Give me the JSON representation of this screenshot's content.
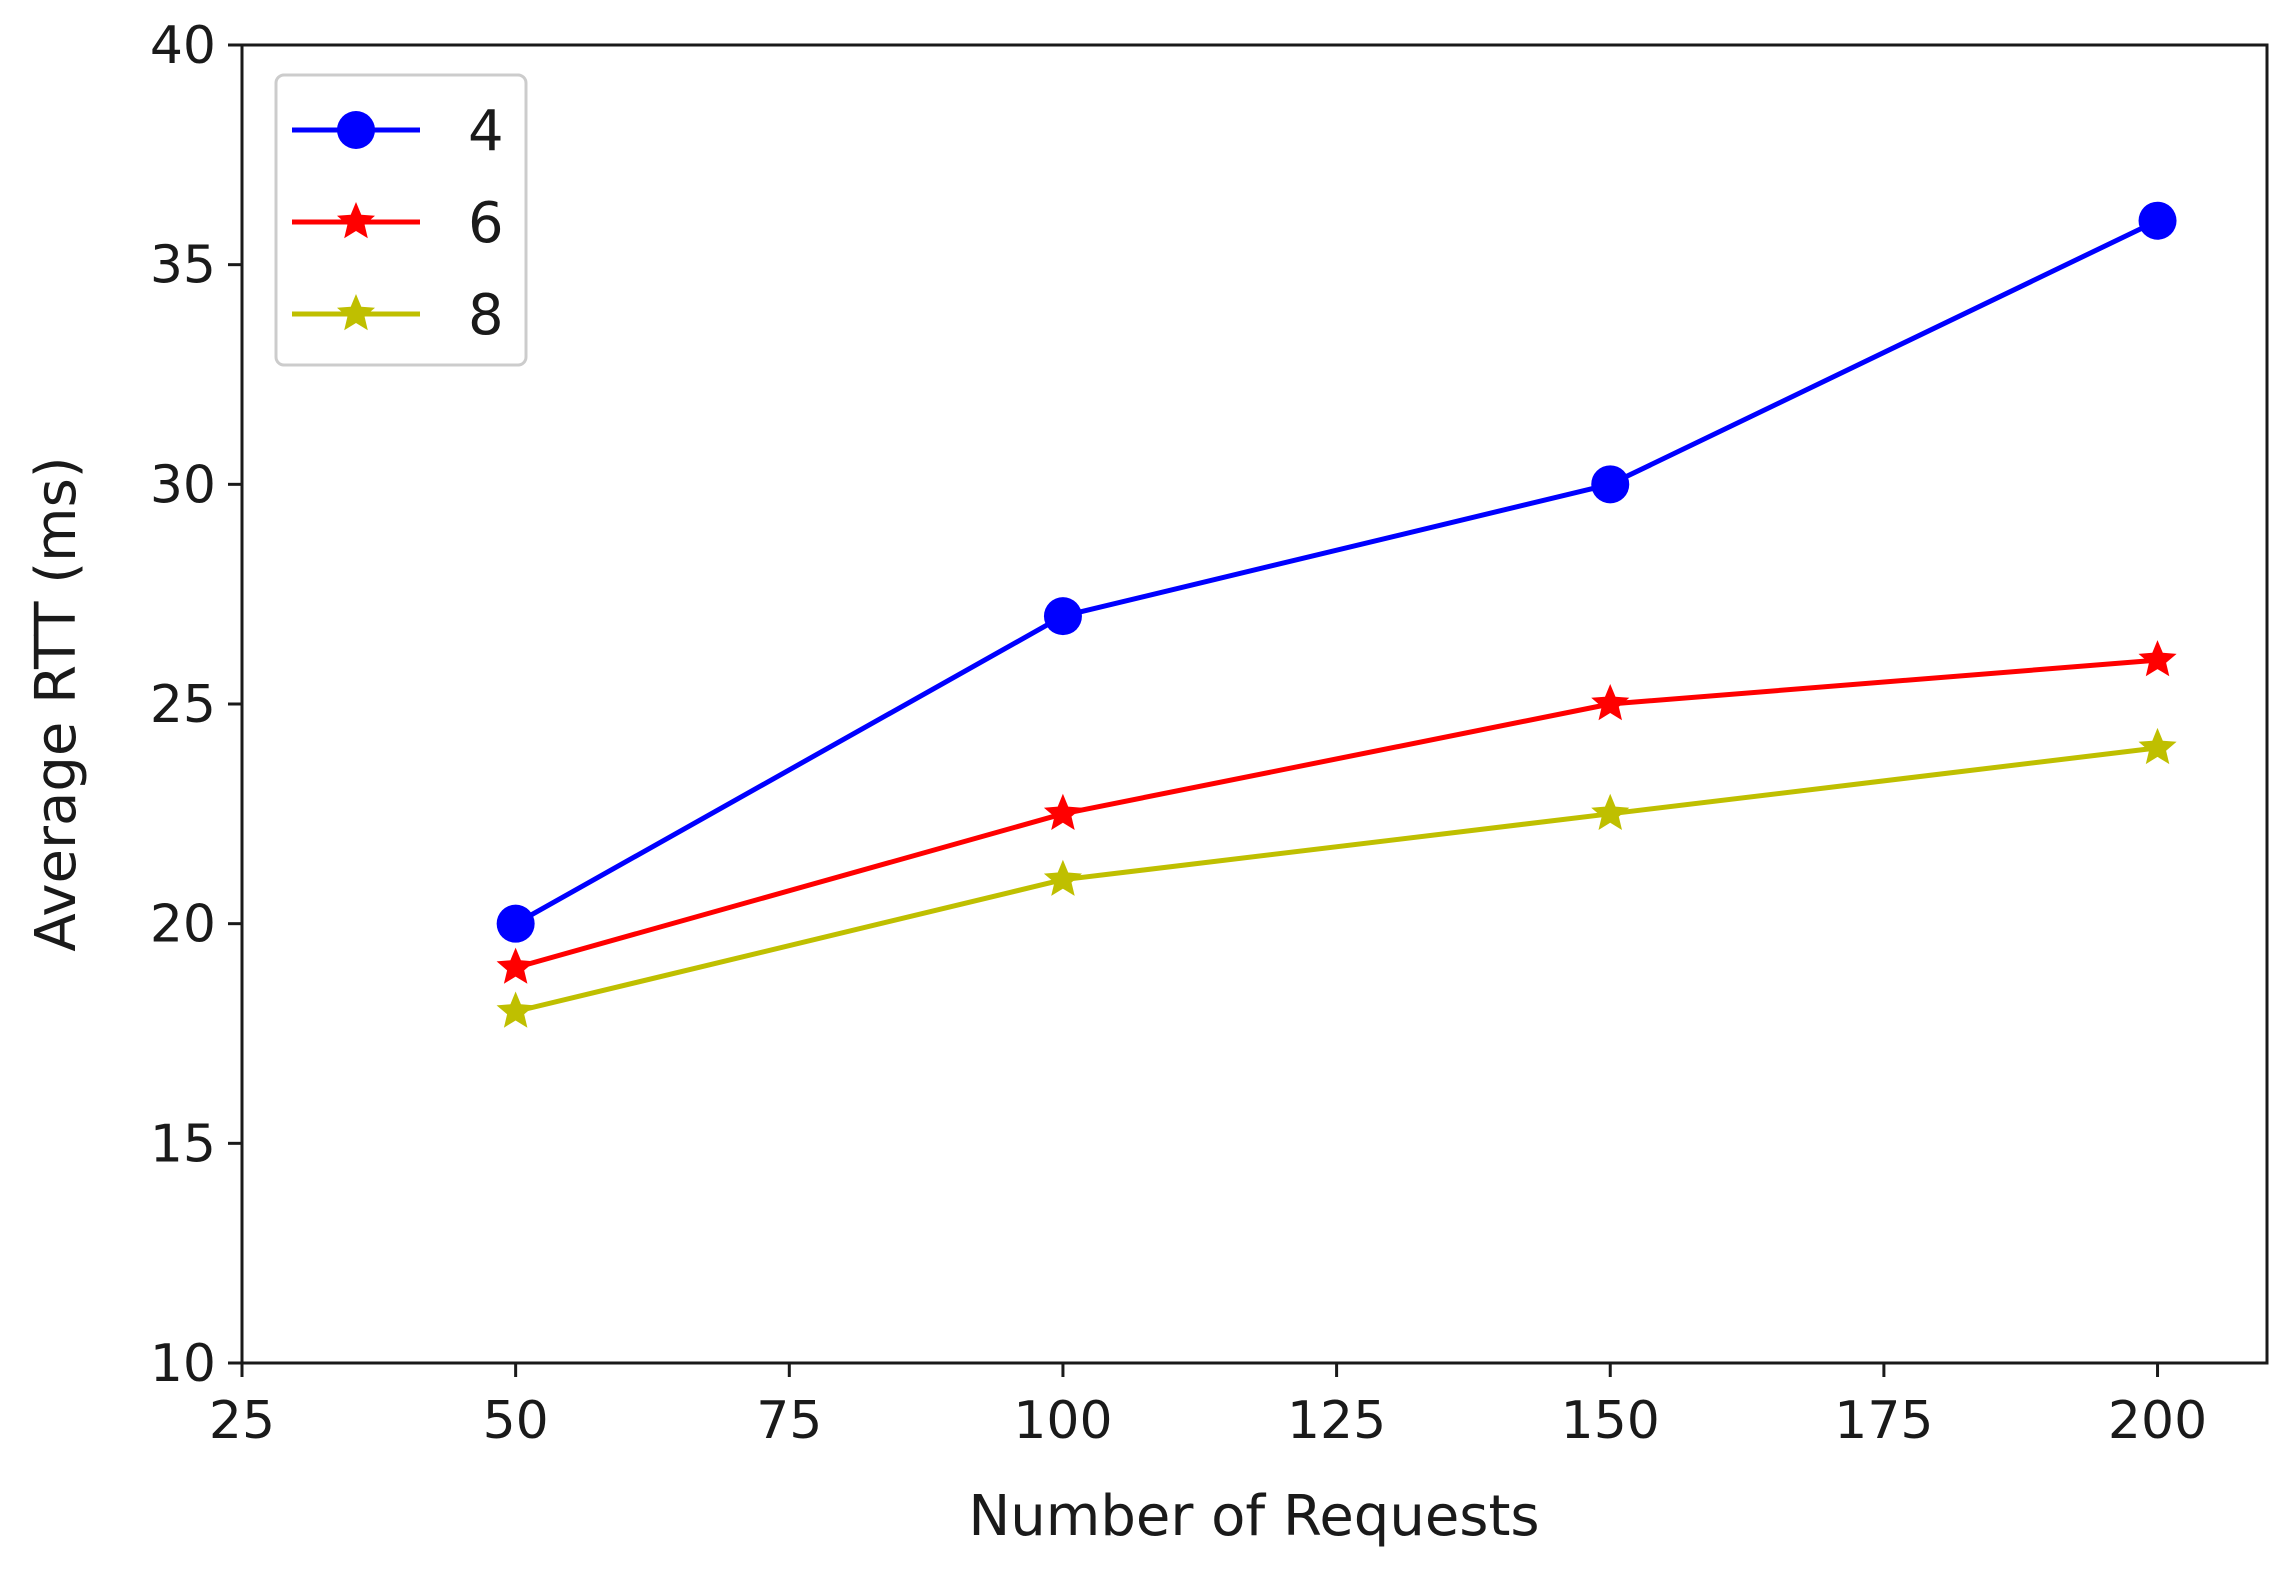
{
  "chart_data": {
    "type": "line",
    "title": "",
    "xlabel": "Number of Requests",
    "ylabel": "Average RTT (ms)",
    "xlim": [
      25,
      210
    ],
    "ylim": [
      10,
      40
    ],
    "xticks": [
      25,
      50,
      75,
      100,
      125,
      150,
      175,
      200
    ],
    "yticks": [
      10,
      15,
      20,
      25,
      30,
      35,
      40
    ],
    "grid": false,
    "legend": "top-left",
    "x": [
      50,
      100,
      150,
      200
    ],
    "series": [
      {
        "name": "4",
        "values": [
          20,
          27,
          30,
          36
        ],
        "color": "#0000ff",
        "marker": "circle"
      },
      {
        "name": "6",
        "values": [
          19,
          22.5,
          25,
          26
        ],
        "color": "#ff0000",
        "marker": "star"
      },
      {
        "name": "8",
        "values": [
          18,
          21,
          22.5,
          24
        ],
        "color": "#bfbf00",
        "marker": "star"
      }
    ]
  }
}
